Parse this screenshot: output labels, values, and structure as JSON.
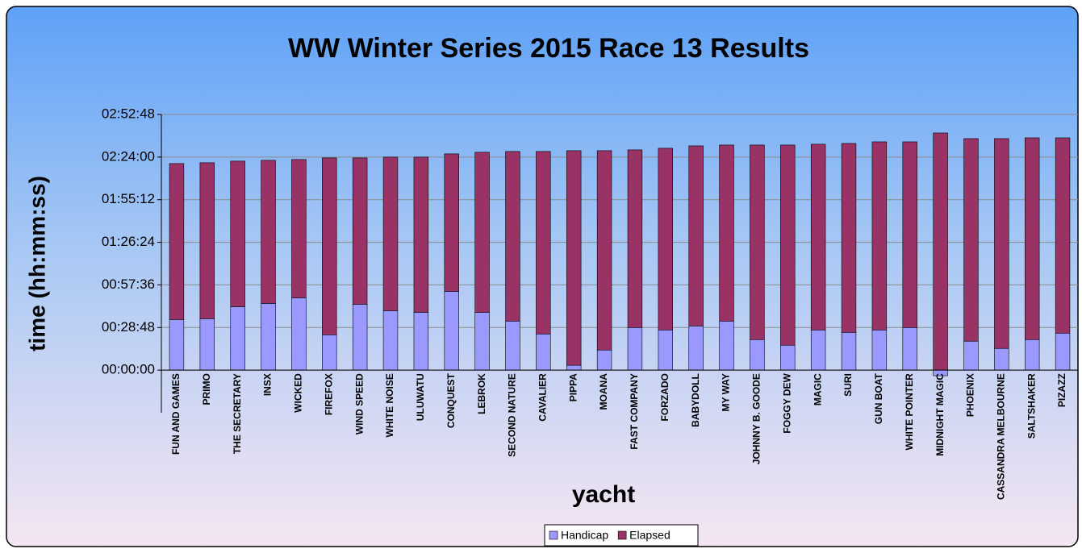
{
  "chart_data": {
    "type": "bar",
    "stacked": true,
    "title": "WW Winter Series 2015 Race 13 Results",
    "x_label": "yacht",
    "y_label": "time (hh:mm:ss)",
    "categories": [
      "FUN AND GAMES",
      "PRIMO",
      "THE SECRETARY",
      "INSX",
      "WICKED",
      "FIREFOX",
      "WIND SPEED",
      "WHITE NOISE",
      "ULUWATU",
      "CONQUEST",
      "LEBROK",
      "SECOND NATURE",
      "CAVALIER",
      "PIPPA",
      "MOANA",
      "FAST COMPANY",
      "FORZADO",
      "BABYDOLL",
      "MY WAY",
      "JOHNNY B. GOODE",
      "FOGGY DEW",
      "MAGIC",
      "SURI",
      "GUN BOAT",
      "WHITE POINTER",
      "MIDNIGHT MAGIC",
      "PHOENIX",
      "CASSANDRA MELBOURNE",
      "SALTSHAKER",
      "PIZAZZ"
    ],
    "series": [
      {
        "name": "Handicap",
        "color": "#9999ff",
        "values": [
          2054,
          2086,
          2575,
          2706,
          2934,
          1434,
          2673,
          2412,
          2347,
          3195,
          2347,
          1989,
          1467,
          196,
          815,
          1728,
          1630,
          1793,
          1989,
          1239,
          1011,
          1630,
          1532,
          1630,
          1728,
          -228,
          1174,
          880,
          1239,
          1500
        ]
      },
      {
        "name": "Elapsed",
        "color": "#993366",
        "values": [
          6324,
          6325,
          5901,
          5803,
          5607,
          7172,
          5933,
          6227,
          6292,
          5574,
          6488,
          6878,
          7400,
          8704,
          8085,
          7204,
          7368,
          7302,
          7139,
          7889,
          8117,
          7531,
          7661,
          7628,
          7530,
          9617,
          8215,
          8509,
          8182,
          7921
        ]
      }
    ],
    "ylim": [
      -1728,
      10368
    ],
    "yticks": [
      {
        "value": 0,
        "label": "00:00:00"
      },
      {
        "value": 1728,
        "label": "00:28:48"
      },
      {
        "value": 3456,
        "label": "00:57:36"
      },
      {
        "value": 5184,
        "label": "01:26:24"
      },
      {
        "value": 6912,
        "label": "01:55:12"
      },
      {
        "value": 8640,
        "label": "02:24:00"
      },
      {
        "value": 10368,
        "label": "02:52:48"
      }
    ],
    "grid": true,
    "legend": "bottom"
  }
}
